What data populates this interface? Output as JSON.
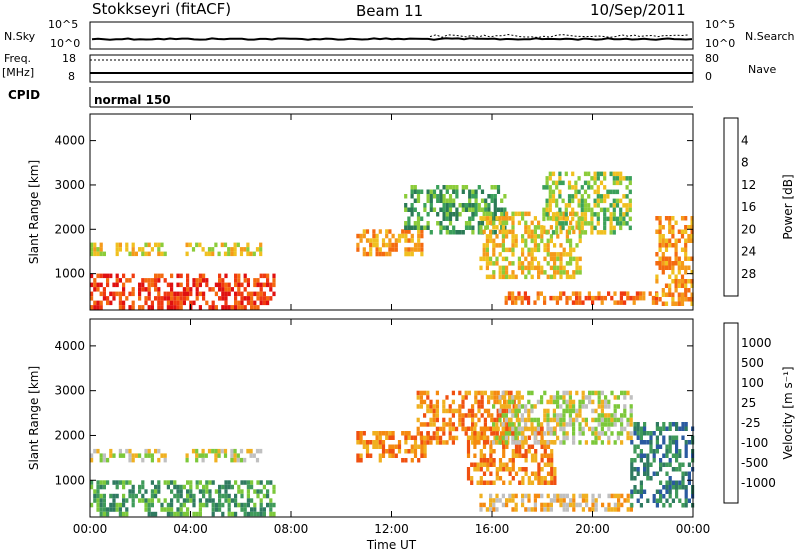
{
  "header": {
    "title": "Stokkseyri (fitACF)",
    "beam": "Beam 11",
    "date": "10/Sep/2011"
  },
  "status_panels": {
    "nsky_label": "N.Sky",
    "nsky_ticks": [
      "10^5",
      "10^0"
    ],
    "nsearch_label": "N.Search",
    "nsearch_ticks": [
      "10^5",
      "10^0"
    ],
    "freq_label": "Freq.",
    "freq_unit": "[MHz]",
    "freq_ticks": [
      "18",
      "8"
    ],
    "nave_label": "Nave",
    "nave_ticks": [
      "80",
      "0"
    ],
    "cpid_label": "CPID",
    "cpid_value": "normal 150"
  },
  "chart_data": [
    {
      "type": "heatmap",
      "name": "power-panel",
      "x_ticks": [
        "00:00",
        "04:00",
        "08:00",
        "12:00",
        "16:00",
        "20:00",
        "00:00"
      ],
      "xlim_hours": [
        0,
        24
      ],
      "ylabel": "Slant Range [km]",
      "y_ticks": [
        1000,
        2000,
        3000,
        4000
      ],
      "ylim": [
        180,
        4600
      ],
      "colorbar": {
        "label": "Power [dB]",
        "ticks": [
          "4",
          "8",
          "12",
          "16",
          "20",
          "24",
          "28"
        ],
        "colors": [
          "#1a1aff",
          "#2050c0",
          "#2a7a55",
          "#3aa05a",
          "#8ccc3a",
          "#f0c020",
          "#f59a1a",
          "#f46a10",
          "#f03a10",
          "#e01010"
        ]
      },
      "regions": [
        {
          "t": [
            0.0,
            7.3
          ],
          "r": [
            200,
            1000
          ],
          "level": 8
        },
        {
          "t": [
            0.0,
            3.0
          ],
          "r": [
            1450,
            1700
          ],
          "level": 5
        },
        {
          "t": [
            3.8,
            6.8
          ],
          "r": [
            1450,
            1700
          ],
          "level": 5
        },
        {
          "t": [
            10.6,
            13.2
          ],
          "r": [
            1400,
            2000
          ],
          "level": 6
        },
        {
          "t": [
            12.5,
            16.5
          ],
          "r": [
            1900,
            3000
          ],
          "level": 3
        },
        {
          "t": [
            15.5,
            19.5
          ],
          "r": [
            900,
            2400
          ],
          "level": 5
        },
        {
          "t": [
            18.0,
            21.5
          ],
          "r": [
            1900,
            3300
          ],
          "level": 4
        },
        {
          "t": [
            16.5,
            22.5
          ],
          "r": [
            300,
            600
          ],
          "level": 7
        },
        {
          "t": [
            22.5,
            24.0
          ],
          "r": [
            300,
            2300
          ],
          "level": 6
        }
      ]
    },
    {
      "type": "heatmap",
      "name": "velocity-panel",
      "x_ticks": [
        "00:00",
        "04:00",
        "08:00",
        "12:00",
        "16:00",
        "20:00",
        "00:00"
      ],
      "xlim_hours": [
        0,
        24
      ],
      "xlabel": "Time UT",
      "ylabel": "Slant Range [km]",
      "y_ticks": [
        1000,
        2000,
        3000,
        4000
      ],
      "ylim": [
        180,
        4600
      ],
      "colorbar": {
        "label": "Velocity [m s⁻¹]",
        "ticks": [
          "1000",
          "500",
          "100",
          "25",
          "-25",
          "-100",
          "-500",
          "-1000"
        ],
        "colors": [
          "#1a3cc0",
          "#2a5aa0",
          "#2f7a60",
          "#3f9a5a",
          "#7cc83a",
          "#c0c0c0",
          "#f0b020",
          "#f58a10",
          "#f05010",
          "#e01010"
        ]
      },
      "regions": [
        {
          "t": [
            0.0,
            7.3
          ],
          "r": [
            200,
            1000
          ],
          "level": 3
        },
        {
          "t": [
            0.0,
            3.0
          ],
          "r": [
            1450,
            1700
          ],
          "level": 5
        },
        {
          "t": [
            3.8,
            6.8
          ],
          "r": [
            1450,
            1700
          ],
          "level": 5
        },
        {
          "t": [
            10.6,
            13.5
          ],
          "r": [
            1400,
            2100
          ],
          "level": 7
        },
        {
          "t": [
            13.0,
            17.0
          ],
          "r": [
            1800,
            3000
          ],
          "level": 7
        },
        {
          "t": [
            15.0,
            18.5
          ],
          "r": [
            900,
            2200
          ],
          "level": 7
        },
        {
          "t": [
            16.0,
            21.5
          ],
          "r": [
            1800,
            3000
          ],
          "level": 5
        },
        {
          "t": [
            15.5,
            21.5
          ],
          "r": [
            300,
            700
          ],
          "level": 6
        },
        {
          "t": [
            21.5,
            24.0
          ],
          "r": [
            400,
            2300
          ],
          "level": 2
        }
      ]
    }
  ]
}
